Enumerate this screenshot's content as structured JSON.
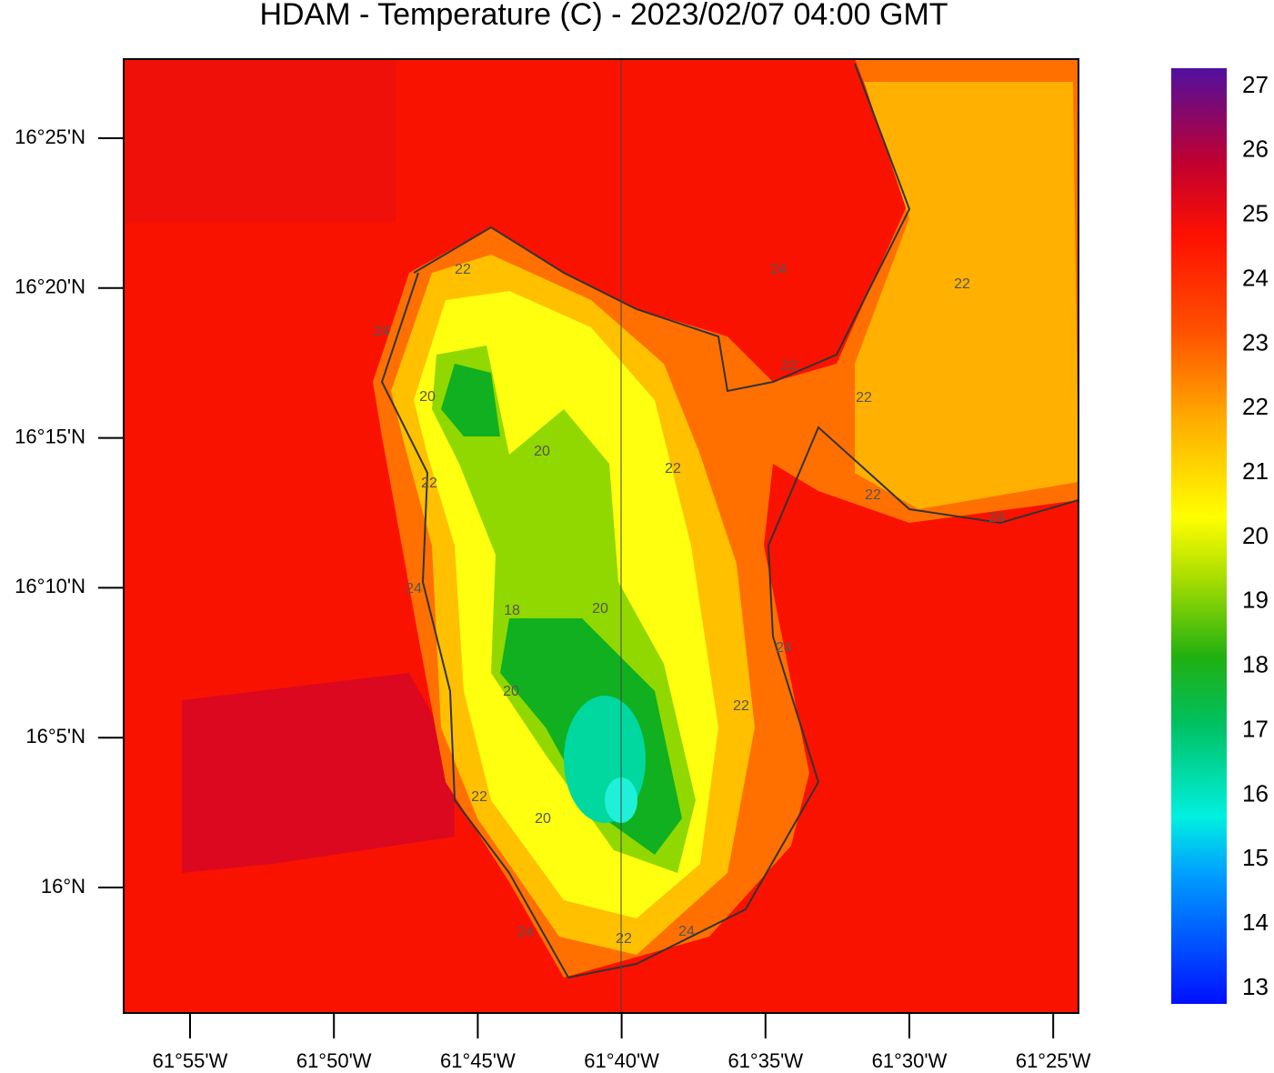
{
  "title": "HDAM - Temperature (C)  -  2023/02/07  04:00 GMT",
  "map": {
    "lat_ticks": [
      "16°25'N",
      "16°20'N",
      "16°15'N",
      "16°10'N",
      "16°5'N",
      "16°N"
    ],
    "lon_ticks": [
      "61°55'W",
      "61°50'W",
      "61°45'W",
      "61°40'W",
      "61°35'W",
      "61°30'W",
      "61°25'W"
    ],
    "contour_labels": [
      "22",
      "24",
      "20",
      "20",
      "22",
      "22",
      "24",
      "18",
      "20",
      "20",
      "22",
      "24",
      "22",
      "20",
      "24",
      "22",
      "24",
      "22",
      "22",
      "22",
      "24",
      "24",
      "22"
    ]
  },
  "colorbar": {
    "ticks": [
      "27",
      "26",
      "25",
      "24",
      "23",
      "22",
      "21",
      "20",
      "19",
      "18",
      "17",
      "16",
      "15",
      "14",
      "13"
    ]
  }
}
